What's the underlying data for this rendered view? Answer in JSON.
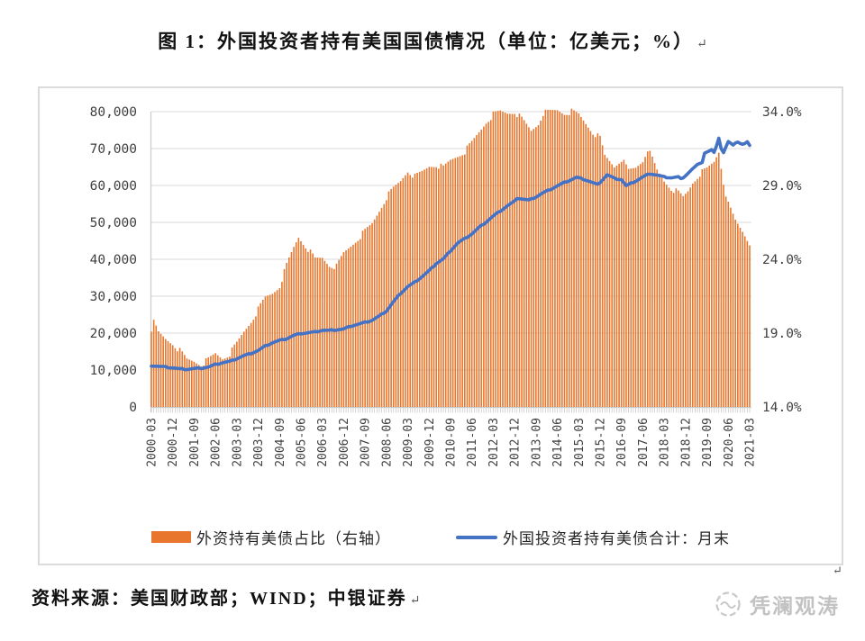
{
  "title": {
    "text": "图 1：外国投资者持有美国国债情况（单位：亿美元；%）",
    "return_mark": "↵"
  },
  "source_note": {
    "text": "资料来源：美国财政部；WIND；中银证券",
    "return_mark": "↵"
  },
  "watermark": {
    "text": "凭澜观涛"
  },
  "colors": {
    "bar": "#E8762C",
    "line": "#4472C4",
    "grid": "#D9D9D9",
    "axis": "#C9C9C9",
    "tick_text": "#3F3F3F"
  },
  "chart_data": {
    "type": "bar+line combo (monthly)",
    "title": "外国投资者持有美国国债情况",
    "units": "亿美元；%",
    "frequency": "monthly",
    "x_start": "2000-03",
    "x_end": "2021-03",
    "x_tick_labels": [
      "2000-03",
      "2000-12",
      "2001-09",
      "2002-06",
      "2003-03",
      "2003-12",
      "2004-09",
      "2005-06",
      "2006-03",
      "2006-12",
      "2007-09",
      "2008-06",
      "2009-03",
      "2009-12",
      "2010-09",
      "2011-06",
      "2012-03",
      "2012-12",
      "2013-09",
      "2014-06",
      "2015-03",
      "2015-12",
      "2016-09",
      "2017-06",
      "2018-03",
      "2018-12",
      "2019-09",
      "2020-06",
      "2021-03"
    ],
    "x_tick_step_months": 9,
    "left_axis": {
      "min": 0,
      "max": 80000,
      "tick_labels": [
        "80,000",
        "70,000",
        "60,000",
        "50,000",
        "40,000",
        "30,000",
        "20,000",
        "10,000",
        "0"
      ]
    },
    "right_axis": {
      "min": 14,
      "max": 34,
      "tick_labels": [
        "34.0%",
        "29.0%",
        "24.0%",
        "19.0%",
        "14.0%"
      ]
    },
    "grid": true,
    "legend_position": "bottom",
    "series": [
      {
        "name": "外资持有美债占比（右轴）",
        "type": "bar",
        "axis": "right",
        "color": "#E8762C",
        "anchors": [
          [
            "2000-03",
            19.3
          ],
          [
            "2000-04",
            19.7
          ],
          [
            "2000-06",
            19.0
          ],
          [
            "2000-09",
            18.6
          ],
          [
            "2000-12",
            18.3
          ],
          [
            "2001-03",
            17.8
          ],
          [
            "2001-06",
            17.2
          ],
          [
            "2001-09",
            17.1
          ],
          [
            "2001-12",
            16.9
          ],
          [
            "2002-03",
            17.2
          ],
          [
            "2002-06",
            17.6
          ],
          [
            "2002-09",
            17.3
          ],
          [
            "2002-12",
            17.6
          ],
          [
            "2003-03",
            18.3
          ],
          [
            "2003-06",
            19.1
          ],
          [
            "2003-09",
            19.8
          ],
          [
            "2003-12",
            20.6
          ],
          [
            "2004-03",
            21.4
          ],
          [
            "2004-06",
            21.7
          ],
          [
            "2004-09",
            22.2
          ],
          [
            "2004-12",
            23.6
          ],
          [
            "2005-03",
            24.8
          ],
          [
            "2005-05",
            25.5
          ],
          [
            "2005-06",
            25.3
          ],
          [
            "2005-09",
            24.7
          ],
          [
            "2005-12",
            24.0
          ],
          [
            "2006-03",
            24.1
          ],
          [
            "2006-06",
            23.6
          ],
          [
            "2006-09",
            23.5
          ],
          [
            "2006-12",
            24.4
          ],
          [
            "2007-03",
            24.9
          ],
          [
            "2007-06",
            25.4
          ],
          [
            "2007-09",
            25.9
          ],
          [
            "2007-12",
            26.4
          ],
          [
            "2008-03",
            27.3
          ],
          [
            "2008-06",
            28.2
          ],
          [
            "2008-09",
            28.8
          ],
          [
            "2008-12",
            29.3
          ],
          [
            "2009-03",
            30.0
          ],
          [
            "2009-06",
            29.6
          ],
          [
            "2009-09",
            29.9
          ],
          [
            "2009-12",
            30.3
          ],
          [
            "2010-03",
            30.4
          ],
          [
            "2010-06",
            30.2
          ],
          [
            "2010-09",
            30.7
          ],
          [
            "2010-12",
            31.0
          ],
          [
            "2011-03",
            31.3
          ],
          [
            "2011-06",
            31.9
          ],
          [
            "2011-09",
            32.6
          ],
          [
            "2011-12",
            33.3
          ],
          [
            "2012-03",
            33.8
          ],
          [
            "2012-06",
            34.0
          ],
          [
            "2012-09",
            33.9
          ],
          [
            "2012-12",
            34.0
          ],
          [
            "2013-03",
            33.5
          ],
          [
            "2013-07",
            32.7
          ],
          [
            "2013-10",
            33.2
          ],
          [
            "2013-12",
            33.9
          ],
          [
            "2014-03",
            34.0
          ],
          [
            "2014-06",
            34.1
          ],
          [
            "2014-09",
            33.9
          ],
          [
            "2014-12",
            34.0
          ],
          [
            "2015-03",
            33.8
          ],
          [
            "2015-06",
            33.2
          ],
          [
            "2015-09",
            32.6
          ],
          [
            "2015-12",
            32.2
          ],
          [
            "2016-02",
            31.0
          ],
          [
            "2016-06",
            30.3
          ],
          [
            "2016-09",
            30.8
          ],
          [
            "2016-12",
            30.0
          ],
          [
            "2017-03",
            30.2
          ],
          [
            "2017-06",
            30.7
          ],
          [
            "2017-08",
            31.5
          ],
          [
            "2017-10",
            30.8
          ],
          [
            "2017-12",
            30.0
          ],
          [
            "2018-03",
            29.3
          ],
          [
            "2018-06",
            28.8
          ],
          [
            "2018-09",
            28.5
          ],
          [
            "2018-11",
            28.2
          ],
          [
            "2019-01",
            28.6
          ],
          [
            "2019-03",
            29.2
          ],
          [
            "2019-06",
            29.8
          ],
          [
            "2019-09",
            30.1
          ],
          [
            "2019-12",
            30.6
          ],
          [
            "2020-02",
            31.3
          ],
          [
            "2020-04",
            29.2
          ],
          [
            "2020-06",
            27.7
          ],
          [
            "2020-09",
            26.6
          ],
          [
            "2020-12",
            25.9
          ],
          [
            "2021-03",
            25.1
          ]
        ]
      },
      {
        "name": "外国投资者持有美债合计：月末",
        "type": "line",
        "axis": "left",
        "color": "#4472C4",
        "anchors": [
          [
            "2000-03",
            11200
          ],
          [
            "2000-06",
            11000
          ],
          [
            "2000-09",
            10800
          ],
          [
            "2000-12",
            10600
          ],
          [
            "2001-03",
            10300
          ],
          [
            "2001-06",
            10200
          ],
          [
            "2001-09",
            10400
          ],
          [
            "2001-12",
            10500
          ],
          [
            "2002-03",
            10800
          ],
          [
            "2002-06",
            11500
          ],
          [
            "2002-09",
            12000
          ],
          [
            "2002-12",
            12300
          ],
          [
            "2003-03",
            13100
          ],
          [
            "2003-06",
            13900
          ],
          [
            "2003-09",
            14500
          ],
          [
            "2003-12",
            15300
          ],
          [
            "2004-03",
            16500
          ],
          [
            "2004-06",
            17400
          ],
          [
            "2004-09",
            18000
          ],
          [
            "2004-12",
            18500
          ],
          [
            "2005-03",
            19400
          ],
          [
            "2005-06",
            19900
          ],
          [
            "2005-09",
            20100
          ],
          [
            "2005-12",
            20300
          ],
          [
            "2006-03",
            20800
          ],
          [
            "2006-06",
            20700
          ],
          [
            "2006-09",
            20900
          ],
          [
            "2006-12",
            21100
          ],
          [
            "2007-03",
            21900
          ],
          [
            "2007-06",
            22400
          ],
          [
            "2007-09",
            22900
          ],
          [
            "2007-12",
            23500
          ],
          [
            "2008-03",
            24600
          ],
          [
            "2008-06",
            26000
          ],
          [
            "2008-09",
            28500
          ],
          [
            "2008-12",
            30800
          ],
          [
            "2009-03",
            32600
          ],
          [
            "2009-06",
            33800
          ],
          [
            "2009-09",
            35300
          ],
          [
            "2009-12",
            36900
          ],
          [
            "2010-03",
            38900
          ],
          [
            "2010-06",
            40100
          ],
          [
            "2010-09",
            42300
          ],
          [
            "2010-12",
            44400
          ],
          [
            "2011-03",
            45600
          ],
          [
            "2011-06",
            46900
          ],
          [
            "2011-09",
            48600
          ],
          [
            "2011-12",
            50100
          ],
          [
            "2012-03",
            51700
          ],
          [
            "2012-06",
            53100
          ],
          [
            "2012-09",
            54500
          ],
          [
            "2012-12",
            55700
          ],
          [
            "2013-01",
            56600
          ],
          [
            "2013-06",
            56000
          ],
          [
            "2013-09",
            56900
          ],
          [
            "2013-12",
            58000
          ],
          [
            "2014-03",
            58900
          ],
          [
            "2014-06",
            59900
          ],
          [
            "2014-09",
            60800
          ],
          [
            "2014-12",
            61600
          ],
          [
            "2015-02",
            62200
          ],
          [
            "2015-06",
            61500
          ],
          [
            "2015-11",
            60200
          ],
          [
            "2016-03",
            62900
          ],
          [
            "2016-06",
            61900
          ],
          [
            "2016-09",
            61600
          ],
          [
            "2016-11",
            59900
          ],
          [
            "2017-03",
            61200
          ],
          [
            "2017-06",
            62300
          ],
          [
            "2017-09",
            63200
          ],
          [
            "2017-12",
            62800
          ],
          [
            "2018-03",
            62300
          ],
          [
            "2018-06",
            62100
          ],
          [
            "2018-09",
            62300
          ],
          [
            "2018-10",
            61700
          ],
          [
            "2018-12",
            62700
          ],
          [
            "2019-03",
            64500
          ],
          [
            "2019-06",
            66100
          ],
          [
            "2019-07",
            66300
          ],
          [
            "2019-08",
            68800
          ],
          [
            "2019-10",
            69300
          ],
          [
            "2019-11",
            69600
          ],
          [
            "2019-12",
            68800
          ],
          [
            "2020-01",
            70800
          ],
          [
            "2020-02",
            72900
          ],
          [
            "2020-03",
            70000
          ],
          [
            "2020-04",
            68900
          ],
          [
            "2020-05",
            70400
          ],
          [
            "2020-06",
            71800
          ],
          [
            "2020-07",
            71300
          ],
          [
            "2020-08",
            71100
          ],
          [
            "2020-09",
            71600
          ],
          [
            "2020-10",
            71800
          ],
          [
            "2020-11",
            71400
          ],
          [
            "2020-12",
            71100
          ],
          [
            "2021-01",
            71300
          ],
          [
            "2021-02",
            71700
          ],
          [
            "2021-03",
            71000
          ]
        ]
      }
    ]
  }
}
